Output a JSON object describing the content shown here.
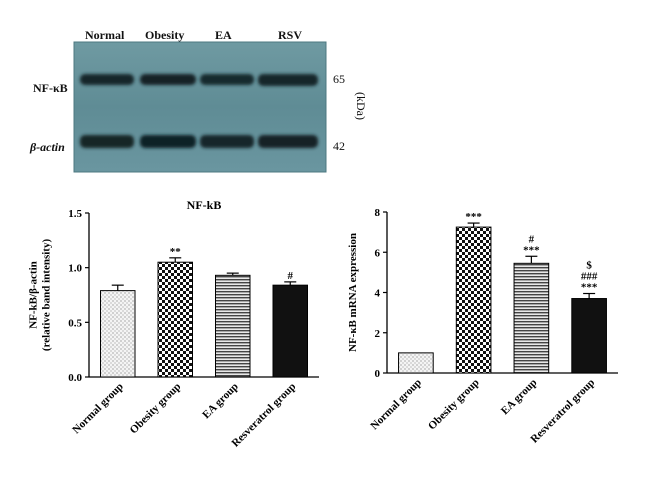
{
  "western_blot": {
    "lane_labels": [
      "Normal",
      "Obesity",
      "EA",
      "RSV"
    ],
    "rows": [
      {
        "label": "NF-κB",
        "kda": "65"
      },
      {
        "label": "β-actin",
        "kda": "42"
      }
    ],
    "unit": "(kDa)"
  },
  "chart_data": [
    {
      "type": "bar",
      "title": "NF-kB",
      "ylabel": "NF-kB/β-actin\n(relative band intensity)",
      "ylim": [
        0,
        1.5
      ],
      "yticks": [
        "0.0",
        "0.5",
        "1.0",
        "1.5"
      ],
      "categories": [
        "Normal group",
        "Obesity group",
        "EA group",
        "Resveratrol group"
      ],
      "values": [
        0.79,
        1.05,
        0.93,
        0.84
      ],
      "errors": [
        0.05,
        0.04,
        0.02,
        0.03
      ],
      "annotations": [
        "",
        "**",
        "",
        "#"
      ],
      "fills": [
        "dots",
        "checker",
        "hlines",
        "solid"
      ]
    },
    {
      "type": "bar",
      "title": "",
      "ylabel": "NF-κB mRNA expression",
      "ylim": [
        0,
        8
      ],
      "yticks": [
        "0",
        "2",
        "4",
        "6",
        "8"
      ],
      "categories": [
        "Normal group",
        "Obesity group",
        "EA group",
        "Resveratrol group"
      ],
      "values": [
        1.0,
        7.25,
        5.45,
        3.7
      ],
      "errors": [
        0.0,
        0.2,
        0.35,
        0.25
      ],
      "annotations": [
        "",
        "***",
        "#\n***",
        "$\n###\n***"
      ],
      "fills": [
        "dots",
        "checker",
        "hlines",
        "solid"
      ]
    }
  ]
}
